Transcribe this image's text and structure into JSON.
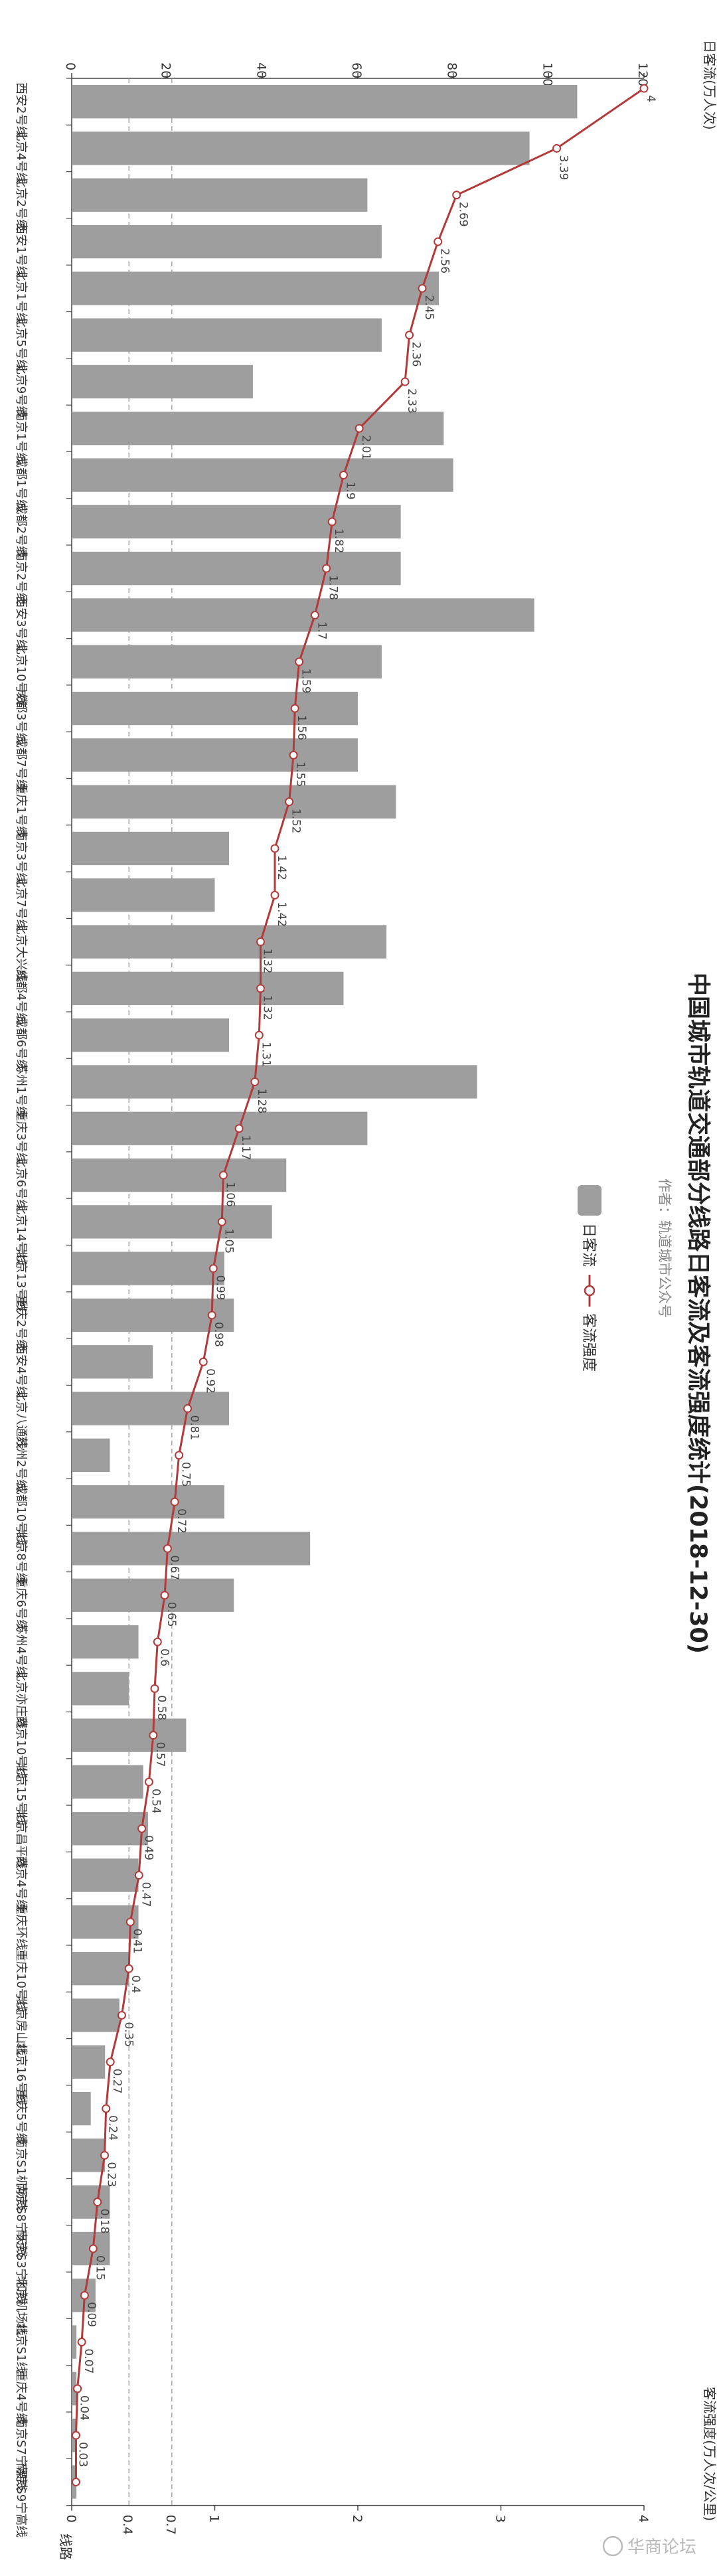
{
  "chart_data": {
    "type": "bar",
    "title": "中国城市轨道交通部分线路日客流及客流强度统计(2018-12-30)",
    "subtitle": "作者：轨道城市公众号",
    "ylabel_bar": "日客流(万人次)",
    "ylabel_line": "客流强度(万人次/公里)",
    "xlabel": "线路",
    "bar_axis_range": [
      0,
      120
    ],
    "bar_ticks": [
      0,
      20,
      40,
      60,
      80,
      100,
      120
    ],
    "line_axis_range": [
      0,
      4
    ],
    "line_ticks": [
      0,
      1,
      2,
      3,
      4
    ],
    "reference_lines": [
      0.4,
      0.7
    ],
    "reference_labels": [
      "0.4",
      "0.7"
    ],
    "legend_placement": "top-right",
    "grid": false,
    "colors": {
      "bar": "#9e9e9e",
      "line": "#b33a3a",
      "refline": "#999999"
    },
    "categories": [
      "西安2号线",
      "北京4号线",
      "北京2号线",
      "西安1号线",
      "北京1号线",
      "北京5号线",
      "北京9号线",
      "南京1号线",
      "成都1号线",
      "成都2号线",
      "南京2号线",
      "西安3号线",
      "北京10号线",
      "成都3号线",
      "成都7号线",
      "重庆1号线",
      "南京3号线",
      "北京7号线",
      "北京大兴线",
      "成都4号线",
      "成都6号线",
      "苏州1号线",
      "重庆3号线",
      "北京6号线",
      "北京14号线",
      "北京13号线",
      "重庆2号线",
      "西安4号线",
      "北京八通线",
      "苏州2号线",
      "成都10号线",
      "北京8号线",
      "重庆6号线",
      "苏州4号线",
      "北京亦庄线",
      "南京10号线",
      "北京15号线",
      "北京昌平线",
      "南京4号线",
      "重庆环线",
      "重庆10号线",
      "北京房山线",
      "北京16号线",
      "重庆5号线",
      "南京S1机场线",
      "南京S8宁天线",
      "南京S3宁和线",
      "北京机场线",
      "北京S1线",
      "重庆4号线",
      "南京S7宁溧线",
      "南京S9宁高线"
    ],
    "series": [
      {
        "name": "日客流",
        "type": "bar",
        "values": [
          106,
          96,
          62,
          65,
          77,
          65,
          38,
          78,
          80,
          69,
          69,
          97,
          65,
          60,
          60,
          68,
          33,
          30,
          66,
          57,
          33,
          85,
          62,
          45,
          42,
          32,
          34,
          17,
          33,
          8,
          32,
          50,
          34,
          14,
          12,
          24,
          15,
          16,
          14,
          14,
          12,
          10,
          7,
          4,
          7,
          8,
          8,
          5,
          1,
          1,
          1,
          1
        ]
      },
      {
        "name": "客流强度",
        "type": "line",
        "values": [
          4,
          3.39,
          2.69,
          2.56,
          2.45,
          2.36,
          2.33,
          2.01,
          1.9,
          1.82,
          1.78,
          1.7,
          1.59,
          1.56,
          1.55,
          1.52,
          1.42,
          1.42,
          1.32,
          1.32,
          1.31,
          1.28,
          1.17,
          1.06,
          1.05,
          0.99,
          0.98,
          0.92,
          0.81,
          0.75,
          0.72,
          0.67,
          0.65,
          0.6,
          0.58,
          0.57,
          0.54,
          0.49,
          0.47,
          0.41,
          0.4,
          0.35,
          0.27,
          0.24,
          0.23,
          0.18,
          0.15,
          0.09,
          0.07,
          0.04,
          0.03,
          0.03
        ],
        "labels": [
          "4",
          "3.39",
          "2.69",
          "2.56",
          "2.45",
          "2.36",
          "2.33",
          "2.01",
          "1.9",
          "1.82",
          "1.78",
          "1.7",
          "1.59",
          "1.56",
          "1.55",
          "1.52",
          "1.42",
          "1.42",
          "1.32",
          "1.32",
          "1.31",
          "1.28",
          "1.17",
          "1.06",
          "1.05",
          "0.99",
          "0.98",
          "0.92",
          "0.81",
          "0.75",
          "0.72",
          "0.67",
          "0.65",
          "0.6",
          "0.58",
          "0.57",
          "0.54",
          "0.49",
          "0.47",
          "0.41",
          "0.4",
          "0.35",
          "0.27",
          "0.24",
          "0.23",
          "0.18",
          "0.15",
          "0.09",
          "0.07",
          "0.04",
          "0.03",
          ""
        ]
      }
    ]
  },
  "legend": {
    "bar_label": "日客流",
    "line_label": "客流强度"
  },
  "watermark": {
    "text": "华商论坛"
  }
}
